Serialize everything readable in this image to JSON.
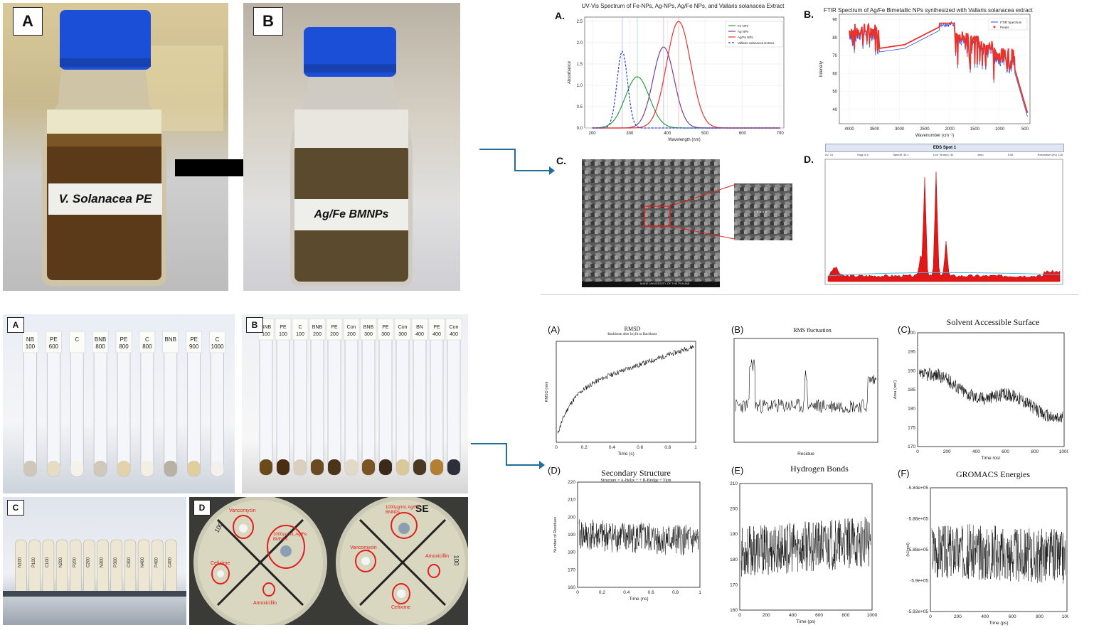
{
  "photo_panels": {
    "bottle_a": {
      "letter": "A",
      "label": "V. Solanacea PE"
    },
    "bottle_b": {
      "letter": "B",
      "label": "Ag/Fe BMNPs"
    },
    "tubes_a": {
      "letter": "A",
      "tube_labels": [
        "NB 100",
        "PE 600",
        "C",
        "BNB 800",
        "PE 800",
        "C 800",
        "BNB",
        "PE 900",
        "C 1000"
      ]
    },
    "tubes_b": {
      "letter": "B",
      "tube_labels": [
        "BNB 100",
        "PE 100",
        "C 100",
        "BNB 200",
        "PE 200",
        "Con 200",
        "BNB 300",
        "PE 300",
        "Con 300",
        "BN 400",
        "PE 400",
        "Con 400"
      ]
    },
    "tubes_c": {
      "letter": "C",
      "tube_labels": [
        "N100",
        "P100",
        "C100",
        "N200",
        "P200",
        "C200",
        "N300",
        "P300",
        "C300",
        "N400",
        "P400",
        "C400"
      ]
    },
    "plates_d": {
      "letter": "D",
      "plate1": {
        "number": "100",
        "labels": [
          "Vancomycin",
          "1000µg/mL Ag/Fe BMNPs",
          "Cefixime",
          "Amoxicillin"
        ]
      },
      "plate2": {
        "number": "100",
        "code": "SE",
        "labels": [
          "1000µg/mL Ag/Fe BMNPs",
          "Vancomycin",
          "Amoxicillin",
          "Cefixime"
        ]
      }
    }
  },
  "uvvis": {
    "letter": "A.",
    "title": "UV-Vis Spectrum of Fe-NPs, Ag-NPs, Ag/Fe NPs, and Vallaris solanacea Extract",
    "xlabel": "Wavelength (nm)",
    "ylabel": "Absorbance",
    "legend": [
      "Fe NPs",
      "Ag NPs",
      "Ag/Fe NPs",
      "Vallaris solanacea Extract"
    ],
    "colors": [
      "#2e9e3e",
      "#7b3f8f",
      "#e8332d",
      "#2b3fd6"
    ],
    "x_ticks": [
      "200",
      "300",
      "400",
      "500",
      "600",
      "700"
    ],
    "y_ticks": [
      "0.0",
      "0.5",
      "1.0",
      "1.5",
      "2.0",
      "2.5"
    ]
  },
  "ftir": {
    "letter": "B.",
    "title": "FTIR Spectrum of Ag/Fe Bimetallic NPs synthesized with Vallaris solanacea extract",
    "xlabel": "Wavenumber (cm⁻¹)",
    "ylabel": "Intensity",
    "legend": [
      "FTIR Spectrum",
      "Peaks"
    ],
    "x_ticks": [
      "4000",
      "3500",
      "3000",
      "2500",
      "2000",
      "1500",
      "1000",
      "500"
    ],
    "y_ticks": [
      "40",
      "50",
      "60",
      "70",
      "80",
      "90"
    ]
  },
  "sem": {
    "letter": "C.",
    "footer": "MAHE UNIVERSITY OF THE PUNJAB"
  },
  "eds": {
    "letter": "D.",
    "title": "EDS Spot 1",
    "header": [
      "kV: 10",
      "Mag: 6.0",
      "Takeoff: 34.1",
      "Live Time(s): 30",
      "Amp",
      "5.56",
      "Resolution:(eV) 126"
    ]
  },
  "md": {
    "rmsd": {
      "letter": "(A)",
      "title": "RMSD",
      "subtitle": "Backbone after lsq fit to Backbone",
      "xlabel": "Time (s)",
      "ylabel": "RMSD (nm)",
      "x_ticks": [
        "0",
        "0.2",
        "0.4",
        "0.6",
        "0.8",
        "1"
      ]
    },
    "rmsf": {
      "letter": "(B)",
      "title": "RMS fluctuation",
      "xlabel": "Residue",
      "ylabel": "(nm)"
    },
    "sasa": {
      "letter": "(C)",
      "title": "Solvent Accessible Surface",
      "xlabel": "Time (ps)",
      "ylabel": "Area (nm²)",
      "x_ticks": [
        "0",
        "200",
        "400",
        "600",
        "800",
        "1000"
      ],
      "y_ticks": [
        "170",
        "175",
        "180",
        "185",
        "190",
        "195",
        "200"
      ]
    },
    "ss": {
      "letter": "(D)",
      "title": "Secondary Structure",
      "subtitle": "Structure = A-Helix + + B-Bridge + Turn",
      "xlabel": "Time (ns)",
      "ylabel": "Number of Residues",
      "x_ticks": [
        "0",
        "0.2",
        "0.4",
        "0.6",
        "0.8",
        "1"
      ],
      "y_ticks": [
        "160",
        "170",
        "180",
        "190",
        "200",
        "210",
        "220"
      ]
    },
    "hb": {
      "letter": "(E)",
      "title": "Hydrogen Bonds",
      "xlabel": "Time (ps)",
      "ylabel": "Number",
      "x_ticks": [
        "0",
        "200",
        "400",
        "600",
        "800",
        "1000"
      ],
      "y_ticks": [
        "160",
        "170",
        "180",
        "190",
        "200",
        "210"
      ]
    },
    "energy": {
      "letter": "(F)",
      "title": "GROMACS Energies",
      "xlabel": "Time (ps)",
      "ylabel": "(kJ/mol)",
      "x_ticks": [
        "0",
        "200",
        "400",
        "600",
        "800",
        "1000"
      ],
      "y_ticks": [
        "-5.92e+05",
        "-5.9e+05",
        "-5.88e+05",
        "-5.86e+05",
        "-5.84e+05"
      ]
    }
  }
}
